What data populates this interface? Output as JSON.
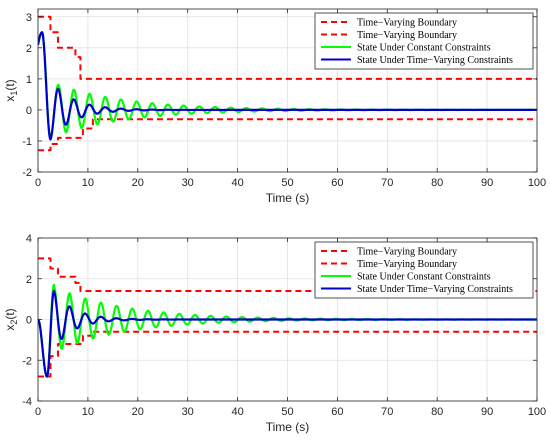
{
  "colors": {
    "boundary": "#ff0000",
    "constant": "#00ff00",
    "timevarying": "#0000cc",
    "grid": "#e0e0e0",
    "axis": "#262626"
  },
  "chart_data": [
    {
      "type": "line",
      "title": "",
      "xlabel": "Time (s)",
      "ylabel": "x",
      "ylabel_sub": "1",
      "ylabel_suffix": "(t)",
      "xlim": [
        0,
        100
      ],
      "ylim": [
        -2,
        3.25
      ],
      "xticks": [
        0,
        10,
        20,
        30,
        40,
        50,
        60,
        70,
        80,
        90,
        100
      ],
      "yticks": [
        -2,
        -1,
        0,
        1,
        2,
        3
      ],
      "grid": true,
      "legend_position": "top-right",
      "series": [
        {
          "name": "Time−Varying Boundary",
          "style": "dashed",
          "color": "boundary",
          "x": [
            0,
            2.5,
            2.5,
            4,
            4,
            7.5,
            7.5,
            8.5,
            8.5,
            100
          ],
          "y": [
            3,
            3,
            2.5,
            2.5,
            2,
            2,
            1.7,
            1.7,
            1,
            1
          ]
        },
        {
          "name": "Time−Varying Boundary",
          "style": "dashed",
          "color": "boundary",
          "x": [
            0,
            2.5,
            2.5,
            4,
            4,
            9,
            9,
            11,
            11,
            100
          ],
          "y": [
            -1.3,
            -1.3,
            -1.1,
            -1.1,
            -0.9,
            -0.9,
            -0.6,
            -0.6,
            -0.3,
            -0.3
          ]
        },
        {
          "name": "State Under Constant Constraints",
          "style": "solid",
          "color": "constant",
          "model": {
            "type": "damped",
            "t0": 0,
            "y0": 2.1,
            "peak_t": 0.8,
            "peak_y": 2.5,
            "amplitude": 0.9,
            "omega": 2.0,
            "decay": 0.07,
            "offset": 0.0,
            "start_t": 2.5
          }
        },
        {
          "name": "State Under Time−Varying Constraints",
          "style": "solid",
          "color": "timevarying",
          "model": {
            "type": "damped",
            "t0": 0,
            "y0": 2.1,
            "peak_t": 0.8,
            "peak_y": 2.5,
            "amplitude": 0.95,
            "omega": 2.0,
            "decay": 0.22,
            "offset": 0.0,
            "start_t": 2.5
          }
        }
      ]
    },
    {
      "type": "line",
      "title": "",
      "xlabel": "Time (s)",
      "ylabel": "x",
      "ylabel_sub": "2",
      "ylabel_suffix": "(t)",
      "xlim": [
        0,
        100
      ],
      "ylim": [
        -4,
        4
      ],
      "xticks": [
        0,
        10,
        20,
        30,
        40,
        50,
        60,
        70,
        80,
        90,
        100
      ],
      "yticks": [
        -4,
        -2,
        0,
        2,
        4
      ],
      "grid": true,
      "legend_position": "top-right",
      "series": [
        {
          "name": "Time−Varying Boundary",
          "style": "dashed",
          "color": "boundary",
          "x": [
            0,
            2.5,
            2.5,
            4,
            4,
            7.5,
            7.5,
            8.5,
            8.5,
            100
          ],
          "y": [
            3,
            3,
            2.5,
            2.5,
            2.1,
            2.1,
            1.8,
            1.8,
            1.4,
            1.4
          ]
        },
        {
          "name": "Time−Varying Boundary",
          "style": "dashed",
          "color": "boundary",
          "x": [
            0,
            2.5,
            2.5,
            4,
            4,
            9,
            9,
            11,
            11,
            100
          ],
          "y": [
            -2.8,
            -2.8,
            -1.8,
            -1.8,
            -1.2,
            -1.2,
            -0.8,
            -0.8,
            -0.6,
            -0.6
          ]
        },
        {
          "name": "State Under Constant Constraints",
          "style": "solid",
          "color": "constant",
          "model": {
            "type": "damped2",
            "y0": 0.0,
            "trough_t": 1.8,
            "trough_y": -2.8,
            "peak_t": 3.2,
            "peak_y": 1.7,
            "amplitude": 1.6,
            "omega": 2.0,
            "decay": 0.07,
            "start_t": 3.2
          }
        },
        {
          "name": "State Under Time−Varying Constraints",
          "style": "solid",
          "color": "timevarying",
          "model": {
            "type": "damped2",
            "y0": 0.0,
            "trough_t": 1.8,
            "trough_y": -2.8,
            "peak_t": 3.2,
            "peak_y": 1.4,
            "amplitude": 1.4,
            "omega": 2.0,
            "decay": 0.25,
            "start_t": 3.2
          }
        }
      ]
    }
  ]
}
